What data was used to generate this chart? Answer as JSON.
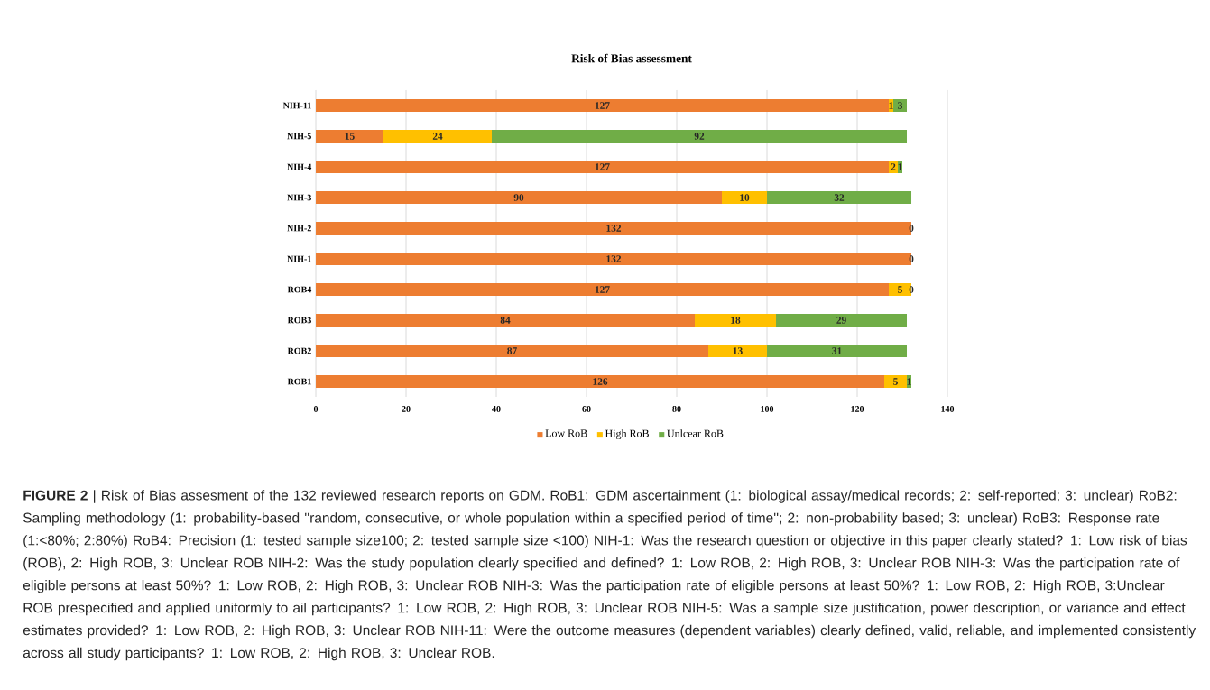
{
  "chart_data": {
    "type": "bar",
    "orientation": "horizontal",
    "stacked": true,
    "title": "Risk of Bias assessment",
    "categories": [
      "NIH-11",
      "NIH-5",
      "NIH-4",
      "NIH-3",
      "NIH-2",
      "NIH-1",
      "ROB4",
      "ROB3",
      "ROB2",
      "ROB1"
    ],
    "series": [
      {
        "name": "Low RoB",
        "color": "#ed7d31",
        "values": [
          127,
          15,
          127,
          90,
          132,
          132,
          127,
          84,
          87,
          126
        ],
        "value_labels": [
          "127",
          "15",
          "127",
          "90",
          "132",
          "132",
          "127",
          "84",
          "87",
          "126"
        ]
      },
      {
        "name": "High RoB",
        "color": "#ffc000",
        "values": [
          1,
          24,
          2,
          10,
          0,
          0,
          5,
          18,
          13,
          5
        ],
        "value_labels": [
          "1",
          "24",
          "2",
          "10",
          null,
          null,
          "5",
          "18",
          "13",
          "5"
        ]
      },
      {
        "name": "Unlcear RoB",
        "color": "#70ad47",
        "values": [
          3,
          92,
          1,
          32,
          0,
          0,
          0,
          29,
          31,
          1
        ],
        "value_labels": [
          "3",
          "92",
          "1",
          "32",
          "0",
          "0",
          "0",
          "29",
          "31",
          "1"
        ]
      }
    ],
    "xlim": [
      0,
      140
    ],
    "xticks": [
      0,
      20,
      40,
      60,
      80,
      100,
      120,
      140
    ],
    "grid": "x",
    "legend": "bottom",
    "annotations": [
      "**FIGURE 2** | Risk of Bias assesment of the 132 reviewed research reports on GDM. RoB1: GDM ascertainment (1: biological assay/medical records;  2: self-reported; 3: unclear) RoB2: Sampling methodology (1: probability-based ''random, consecutive, or whole population within a specified period of time''; 2: non-probability based; 3: unclear) RoB3: Response rate (1:<80%; 2:80%) RoB4: Precision (1: tested sample size100; 2: tested sample size <100) NIH-1: Was the research question or objective in this paper clearly stated?  1: Low risk of bias (ROB), 2: High ROB, 3: Unclear ROB NIH-2: Was the study population clearly specified  and defined? 1: Low  ROB, 2: High ROB, 3: Unclear ROB NIH-3: Was the participation rate of eligible persons at least 50%? 1: Low ROB, 2: High ROB, 3: Unclear ROB NIH-3: Was the participation rate of eligible persons at least 50%? 1: Low ROB, 2: High ROB, 3:Unclear ROB prespecified and applied uniformly to ail participants? 1: Low ROB, 2: High ROB, 3: Unclear ROB NIH-5: Was a sample size justification, power description, or variance and effect estimates provided? 1: Low ROB,  2: High ROB, 3: Unclear  ROB NIH-11: Were  the outcome  measures (dependent variables) clearly defined, valid, reliable, and implemented consistently across all study participants? 1: Low ROB, 2: High ROB, 3: Unclear ROB."
    ]
  }
}
